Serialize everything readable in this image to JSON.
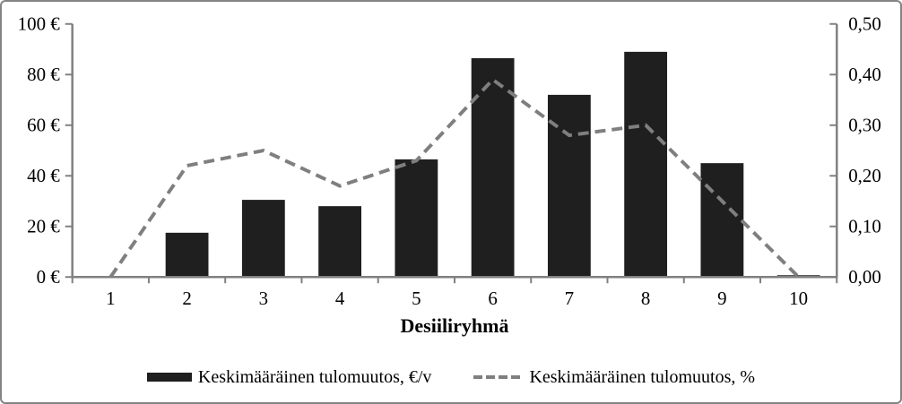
{
  "chart_data": {
    "type": "combo-bar-line",
    "categories": [
      "1",
      "2",
      "3",
      "4",
      "5",
      "6",
      "7",
      "8",
      "9",
      "10"
    ],
    "series": [
      {
        "name": "Keskimääräinen tulomuutos, €/v",
        "type": "bar",
        "axis": "left",
        "color": "#1f1f1f",
        "values": [
          0,
          17.5,
          30.5,
          28,
          46.5,
          86.5,
          72,
          89,
          45,
          0.7
        ]
      },
      {
        "name": "Keskimääräinen tulomuutos, %",
        "type": "line",
        "style": "dashed",
        "axis": "right",
        "color": "#7f7f7f",
        "values": [
          0.0,
          0.22,
          0.25,
          0.18,
          0.23,
          0.39,
          0.28,
          0.3,
          0.15,
          0.0
        ]
      }
    ],
    "title": "",
    "xlabel": "Desiiliryhmä",
    "left_axis": {
      "min": 0,
      "max": 100,
      "step": 20,
      "tick_labels": [
        "0 €",
        "20 €",
        "40 €",
        "60 €",
        "80 €",
        "100 €"
      ]
    },
    "right_axis": {
      "min": 0,
      "max": 0.5,
      "step": 0.1,
      "tick_labels": [
        "0,00",
        "0,10",
        "0,20",
        "0,30",
        "0,40",
        "0,50"
      ]
    },
    "grid": false,
    "legend_position": "bottom",
    "axis_color": "#808080"
  }
}
